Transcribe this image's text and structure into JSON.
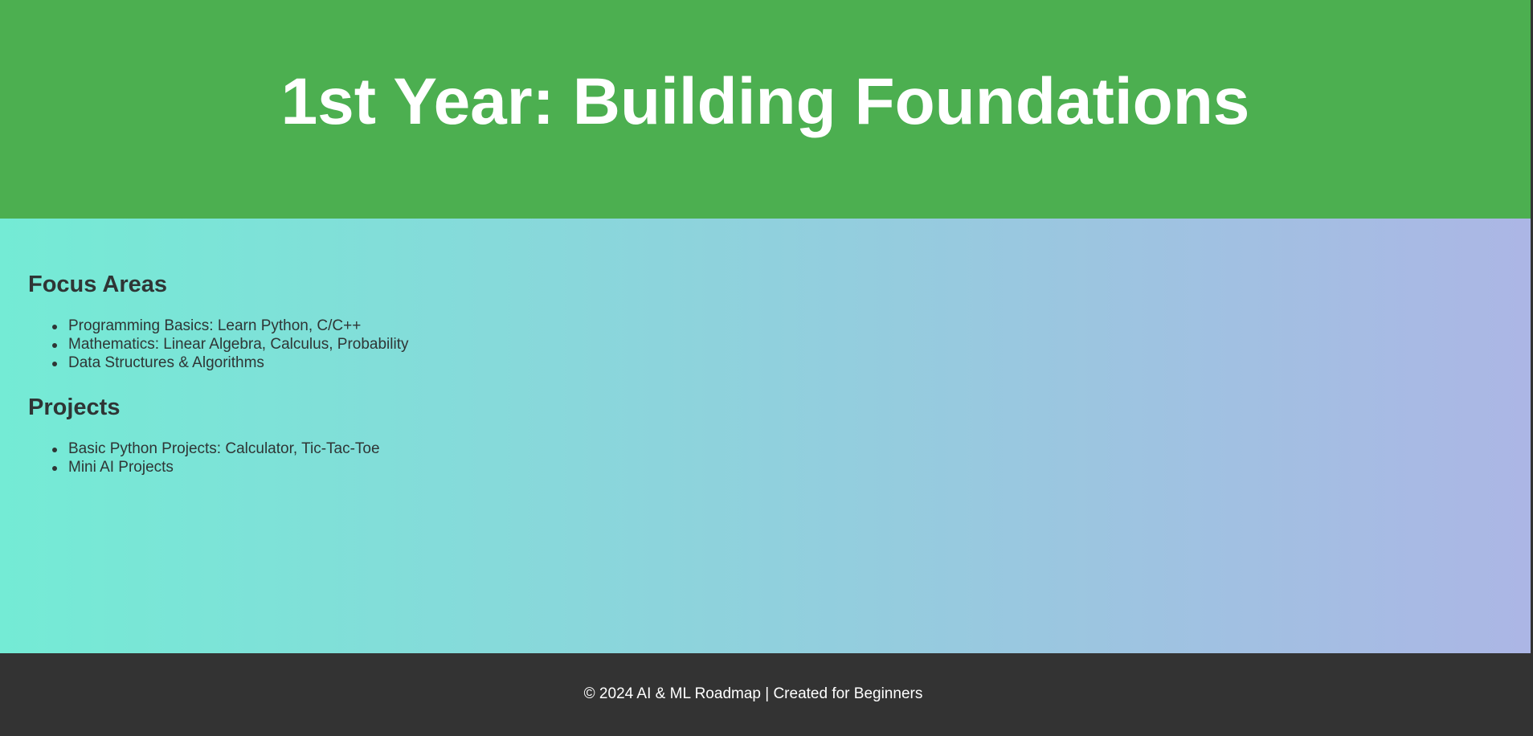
{
  "header": {
    "title": "1st Year: Building Foundations"
  },
  "sections": {
    "focus_areas": {
      "heading": "Focus Areas",
      "items": [
        "Programming Basics: Learn Python, C/C++",
        "Mathematics: Linear Algebra, Calculus, Probability",
        "Data Structures & Algorithms"
      ]
    },
    "projects": {
      "heading": "Projects",
      "items": [
        "Basic Python Projects: Calculator, Tic-Tac-Toe",
        "Mini AI Projects"
      ]
    }
  },
  "footer": {
    "text": "© 2024 AI & ML Roadmap | Created for Beginners"
  },
  "colors": {
    "header_bg": "#4caf50",
    "gradient_start": "#74ebd5",
    "gradient_end": "#acb6e5",
    "footer_bg": "#333333",
    "text": "#2f3535"
  }
}
